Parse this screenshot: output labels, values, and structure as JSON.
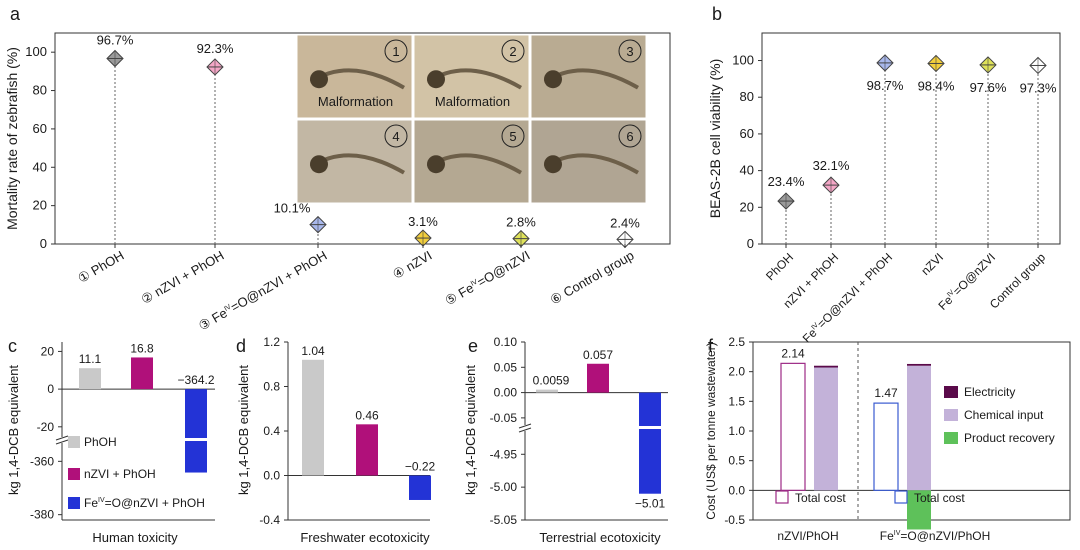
{
  "panel_letters": [
    "a",
    "b",
    "c",
    "d",
    "e",
    "f"
  ],
  "chart_data": [
    {
      "panel": "a",
      "type": "scatter",
      "ylabel": "Mortality rate of zebrafish (%)",
      "ylim": [
        0,
        110
      ],
      "yticks": [
        0,
        20,
        40,
        60,
        80,
        100
      ],
      "categories": [
        "① PhOH",
        "② nZVI + PhOH",
        "③ Fe^IV=O@nZVI + PhOH",
        "④ nZVI",
        "⑤ Fe^IV=O@nZVI",
        "⑥ Control group"
      ],
      "values": [
        96.7,
        92.3,
        10.1,
        3.1,
        2.8,
        2.4
      ],
      "labels": [
        "96.7%",
        "92.3%",
        "10.1%",
        "3.1%",
        "2.8%",
        "2.4%"
      ],
      "colors": [
        "#9a9a9a",
        "#f4a6c6",
        "#a9b8ec",
        "#f3cf3c",
        "#dfe25a",
        "#ffffff"
      ],
      "photos": [
        {
          "num": "1",
          "caption": "Malformation"
        },
        {
          "num": "2",
          "caption": "Malformation"
        },
        {
          "num": "3",
          "caption": ""
        },
        {
          "num": "4",
          "caption": ""
        },
        {
          "num": "5",
          "caption": ""
        },
        {
          "num": "6",
          "caption": ""
        }
      ]
    },
    {
      "panel": "b",
      "type": "scatter",
      "ylabel": "BEAS-2B cell viability (%)",
      "ylim": [
        0,
        115
      ],
      "yticks": [
        0,
        20,
        40,
        60,
        80,
        100
      ],
      "categories": [
        "PhOH",
        "nZVI + PhOH",
        "Fe^IV=O@nZVI + PhOH",
        "nZVI",
        "Fe^IV=O@nZVI",
        "Control group"
      ],
      "values": [
        23.4,
        32.1,
        98.7,
        98.4,
        97.6,
        97.3
      ],
      "labels": [
        "23.4%",
        "32.1%",
        "98.7%",
        "98.4%",
        "97.6%",
        "97.3%"
      ],
      "colors": [
        "#9a9a9a",
        "#f4a6c6",
        "#a9b8ec",
        "#f3cf3c",
        "#dfe25a",
        "#ffffff"
      ]
    },
    {
      "panel": "c",
      "type": "bar",
      "xlabel": "Human toxicity",
      "ylabel": "kg 1,4-DCB equivalent",
      "yticks_upper": [
        "20",
        "0",
        "-20"
      ],
      "yticks_lower": [
        "-360",
        "-380"
      ],
      "categories": [
        "PhOH",
        "nZVI + PhOH",
        "Fe^IV=O@nZVI + PhOH"
      ],
      "values": [
        11.1,
        16.8,
        -364.2
      ],
      "labels": [
        "11.1",
        "16.8",
        "−364.2"
      ],
      "colors": [
        "#c9c9c9",
        "#b0107a",
        "#2333d6"
      ],
      "legend": [
        "PhOH",
        "nZVI + PhOH",
        "Fe^IV=O@nZVI + PhOH"
      ]
    },
    {
      "panel": "d",
      "type": "bar",
      "xlabel": "Freshwater ecotoxicity",
      "ylabel": "kg 1,4-DCB equivalent",
      "ylim": [
        -0.4,
        1.2
      ],
      "yticks": [
        "1.2",
        "0.8",
        "0.4",
        "0.0",
        "-0.4"
      ],
      "categories": [
        "PhOH",
        "nZVI + PhOH",
        "Fe^IV=O@nZVI + PhOH"
      ],
      "values": [
        1.04,
        0.46,
        -0.22
      ],
      "labels": [
        "1.04",
        "0.46",
        "−0.22"
      ],
      "colors": [
        "#c9c9c9",
        "#b0107a",
        "#2333d6"
      ]
    },
    {
      "panel": "e",
      "type": "bar",
      "xlabel": "Terrestrial ecotoxicity",
      "ylabel": "kg 1,4-DCB equivalent",
      "yticks_upper": [
        "0.10",
        "0.05",
        "0.00",
        "-0.05"
      ],
      "yticks_lower": [
        "-4.95",
        "-5.00",
        "-5.05"
      ],
      "categories": [
        "PhOH",
        "nZVI + PhOH",
        "Fe^IV=O@nZVI + PhOH"
      ],
      "values": [
        0.0059,
        0.057,
        -5.01
      ],
      "labels": [
        "0.0059",
        "0.057",
        "−5.01"
      ],
      "colors": [
        "#c9c9c9",
        "#b0107a",
        "#2333d6"
      ]
    },
    {
      "panel": "f",
      "type": "bar",
      "ylabel": "Cost (US$ per tonne wastewater)",
      "ylim": [
        -0.5,
        2.5
      ],
      "yticks": [
        "2.5",
        "2.0",
        "1.5",
        "1.0",
        "0.5",
        "0.0",
        "-0.5"
      ],
      "groups": [
        "nZVI/PhOH",
        "Fe^IV=O@nZVI/PhOH"
      ],
      "total_cost": [
        2.14,
        1.47
      ],
      "total_labels": [
        "2.14",
        "1.47"
      ],
      "stacks": [
        {
          "electricity": 0.03,
          "chemical_input": 2.07,
          "product_recovery": 0
        },
        {
          "electricity": 0.03,
          "chemical_input": 2.1,
          "product_recovery": -0.66
        }
      ],
      "legend": [
        "Electricity",
        "Chemical input",
        "Product recovery"
      ],
      "total_legend": "Total cost",
      "colors": {
        "electricity": "#5a0a4a",
        "chemical_input": "#c3b2d9",
        "product_recovery": "#5ec15a",
        "total_nzvi": "#9c2a86",
        "total_fe": "#3a5bd0"
      }
    }
  ]
}
